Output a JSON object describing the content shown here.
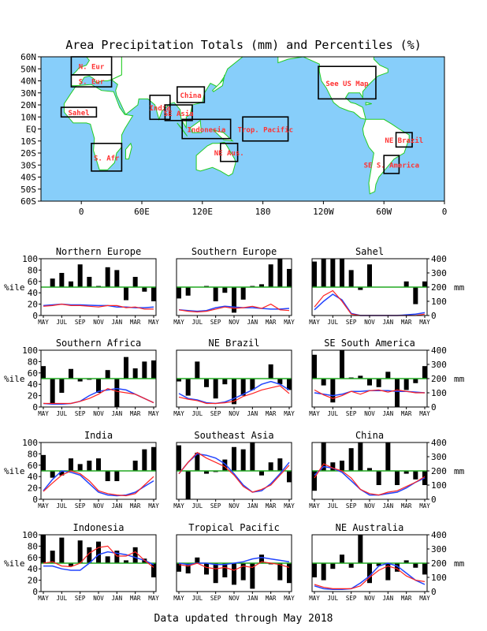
{
  "page": {
    "title": "Area Precipitation Totals (mm) and Percentiles (%)",
    "footer": "Data updated through May 2018",
    "colors": {
      "ocean": "#87cefa",
      "land": "#ffffff",
      "coast": "#22cc22",
      "region_label": "#ff3333",
      "bar": "#000000",
      "total_line": "#ff2222",
      "normal_line": "#2244ff",
      "median_line": "#22aa22"
    }
  },
  "map": {
    "lat_labels": [
      "60N",
      "50N",
      "40N",
      "30N",
      "20N",
      "10N",
      "EQ",
      "10S",
      "20S",
      "30S",
      "40S",
      "50S",
      "60S"
    ],
    "lon_labels": [
      "0",
      "60E",
      "120E",
      "180",
      "120W",
      "60W",
      "0"
    ],
    "lon_values": [
      0,
      60,
      120,
      180,
      240,
      300,
      360
    ],
    "lon_range": [
      -40,
      360
    ],
    "lat_range": [
      -60,
      60
    ],
    "regions": [
      {
        "label": "N. Eur",
        "lon": [
          -10,
          30
        ],
        "lat": [
          45,
          60
        ]
      },
      {
        "label": "S. Eur",
        "lon": [
          -10,
          30
        ],
        "lat": [
          35,
          45
        ]
      },
      {
        "label": "Sahel",
        "lon": [
          -20,
          15
        ],
        "lat": [
          10,
          18
        ]
      },
      {
        "label": "S. Afr",
        "lon": [
          10,
          40
        ],
        "lat": [
          -35,
          -12
        ]
      },
      {
        "label": "India",
        "lon": [
          68,
          88
        ],
        "lat": [
          8,
          28
        ]
      },
      {
        "label": "China",
        "lon": [
          95,
          122
        ],
        "lat": [
          22,
          35
        ]
      },
      {
        "label": "SE Asia",
        "lon": [
          83,
          110
        ],
        "lat": [
          7,
          20
        ]
      },
      {
        "label": "Indonesia",
        "lon": [
          100,
          148
        ],
        "lat": [
          -8,
          8
        ]
      },
      {
        "label": "Trop. Pacific",
        "lon": [
          160,
          205
        ],
        "lat": [
          -10,
          10
        ]
      },
      {
        "label": "NE Aus.",
        "lon": [
          138,
          155
        ],
        "lat": [
          -27,
          -12
        ]
      },
      {
        "label": "See US Map",
        "lon": [
          235,
          292
        ],
        "lat": [
          25,
          52
        ]
      },
      {
        "label": "NE Brazil",
        "lon": [
          312,
          328
        ],
        "lat": [
          -15,
          -3
        ]
      },
      {
        "label": "SE S. America",
        "lon": [
          300,
          315
        ],
        "lat": [
          -37,
          -22
        ]
      }
    ]
  },
  "chart_axes": {
    "left_ticks": [
      "0",
      "20",
      "40",
      "60",
      "80",
      "100"
    ],
    "right_ticks": [
      "0",
      "100",
      "200",
      "300",
      "400"
    ],
    "left_label": "%ile",
    "right_label": "mm",
    "x_ticks": [
      "MAY",
      "JUL",
      "SEP",
      "NOV",
      "JAN",
      "MAR",
      "MAY"
    ],
    "percentile_range": [
      0,
      100
    ],
    "mm_range": [
      0,
      400
    ],
    "median_percentile": 50
  },
  "chart_data": [
    {
      "type": "bar+line",
      "title": "Northern Europe",
      "percentiles": [
        50,
        65,
        75,
        60,
        90,
        68,
        52,
        85,
        80,
        27,
        68,
        42,
        25
      ],
      "total_mm": [
        65,
        70,
        80,
        70,
        70,
        65,
        60,
        70,
        70,
        55,
        60,
        45,
        45
      ],
      "normal_mm": [
        70,
        75,
        80,
        75,
        75,
        72,
        70,
        70,
        60,
        60,
        55,
        55,
        60
      ]
    },
    {
      "type": "bar+line",
      "title": "Southern Europe",
      "percentiles": [
        30,
        35,
        50,
        52,
        25,
        40,
        5,
        28,
        52,
        55,
        90,
        100,
        82
      ],
      "total_mm": [
        40,
        30,
        25,
        30,
        45,
        60,
        50,
        55,
        65,
        50,
        80,
        40,
        35
      ],
      "normal_mm": [
        40,
        35,
        30,
        35,
        55,
        65,
        60,
        55,
        55,
        50,
        45,
        45,
        50
      ]
    },
    {
      "type": "bar+line",
      "title": "Sahel",
      "percentiles": [
        95,
        100,
        100,
        100,
        80,
        45,
        90,
        50,
        50,
        50,
        60,
        20,
        60
      ],
      "total_mm": [
        60,
        140,
        175,
        100,
        10,
        0,
        0,
        0,
        0,
        0,
        0,
        0,
        10
      ],
      "normal_mm": [
        40,
        100,
        150,
        110,
        15,
        0,
        0,
        0,
        0,
        0,
        5,
        10,
        20
      ]
    },
    {
      "type": "bar+line",
      "title": "Southern Africa",
      "percentiles": [
        72,
        5,
        25,
        67,
        45,
        48,
        25,
        65,
        0,
        88,
        68,
        80,
        82
      ],
      "total_mm": [
        25,
        25,
        25,
        25,
        40,
        60,
        90,
        130,
        110,
        100,
        90,
        60,
        30
      ],
      "normal_mm": [
        25,
        20,
        20,
        25,
        40,
        80,
        110,
        120,
        130,
        120,
        90,
        60,
        30
      ]
    },
    {
      "type": "bar+line",
      "title": "NE Brazil",
      "percentiles": [
        45,
        20,
        80,
        35,
        15,
        40,
        5,
        20,
        30,
        50,
        75,
        40,
        30
      ],
      "total_mm": [
        70,
        55,
        45,
        25,
        25,
        30,
        40,
        75,
        95,
        120,
        135,
        150,
        95
      ],
      "normal_mm": [
        95,
        60,
        50,
        30,
        25,
        35,
        60,
        90,
        120,
        160,
        180,
        160,
        120
      ]
    },
    {
      "type": "bar+line",
      "title": "SE South America",
      "percentiles": [
        92,
        38,
        8,
        100,
        52,
        55,
        38,
        35,
        62,
        0,
        30,
        42,
        72
      ],
      "total_mm": [
        120,
        85,
        60,
        80,
        110,
        90,
        115,
        120,
        105,
        120,
        110,
        100,
        100
      ],
      "normal_mm": [
        100,
        90,
        80,
        90,
        110,
        110,
        115,
        115,
        115,
        110,
        110,
        105,
        100
      ]
    },
    {
      "type": "bar+line",
      "title": "India",
      "percentiles": [
        78,
        38,
        42,
        72,
        62,
        68,
        72,
        32,
        32,
        50,
        68,
        88,
        92
      ],
      "total_mm": [
        55,
        115,
        170,
        200,
        180,
        130,
        60,
        40,
        30,
        25,
        40,
        100,
        160
      ],
      "normal_mm": [
        60,
        140,
        200,
        190,
        170,
        110,
        50,
        30,
        25,
        30,
        50,
        90,
        130
      ]
    },
    {
      "type": "bar+line",
      "title": "Southeast Asia",
      "percentiles": [
        95,
        0,
        82,
        45,
        48,
        70,
        92,
        88,
        100,
        42,
        65,
        72,
        30
      ],
      "total_mm": [
        180,
        260,
        330,
        290,
        260,
        230,
        170,
        90,
        50,
        70,
        100,
        170,
        240
      ],
      "normal_mm": [
        180,
        260,
        320,
        310,
        290,
        250,
        180,
        100,
        50,
        60,
        110,
        180,
        260
      ]
    },
    {
      "type": "bar+line",
      "title": "China",
      "percentiles": [
        15,
        100,
        65,
        68,
        90,
        100,
        55,
        25,
        100,
        25,
        45,
        35,
        25
      ],
      "total_mm": [
        150,
        250,
        220,
        200,
        150,
        70,
        40,
        30,
        50,
        60,
        90,
        120,
        160
      ],
      "normal_mm": [
        170,
        230,
        220,
        190,
        130,
        70,
        30,
        30,
        40,
        50,
        80,
        120,
        150
      ]
    },
    {
      "type": "bar+line",
      "title": "Indonesia",
      "percentiles": [
        100,
        72,
        95,
        45,
        90,
        78,
        88,
        62,
        72,
        55,
        78,
        58,
        25
      ],
      "total_mm": [
        200,
        210,
        180,
        175,
        200,
        270,
        310,
        320,
        250,
        250,
        280,
        220,
        170
      ],
      "normal_mm": [
        180,
        180,
        160,
        150,
        150,
        200,
        260,
        280,
        270,
        260,
        240,
        220,
        190
      ]
    },
    {
      "type": "bar+line",
      "title": "Tropical Pacific",
      "percentiles": [
        35,
        32,
        60,
        30,
        15,
        25,
        12,
        20,
        5,
        65,
        48,
        20,
        15
      ],
      "total_mm": [
        190,
        180,
        200,
        170,
        160,
        170,
        150,
        180,
        170,
        210,
        200,
        190,
        170
      ],
      "normal_mm": [
        200,
        190,
        200,
        200,
        190,
        190,
        200,
        210,
        230,
        240,
        230,
        220,
        210
      ]
    },
    {
      "type": "bar+line",
      "title": "NE Australia",
      "percentiles": [
        25,
        20,
        40,
        65,
        42,
        100,
        15,
        45,
        20,
        35,
        55,
        42,
        30
      ],
      "total_mm": [
        50,
        30,
        20,
        20,
        20,
        40,
        100,
        150,
        180,
        160,
        110,
        80,
        70
      ],
      "normal_mm": [
        40,
        20,
        15,
        15,
        20,
        60,
        110,
        180,
        200,
        180,
        130,
        80,
        50
      ]
    }
  ]
}
